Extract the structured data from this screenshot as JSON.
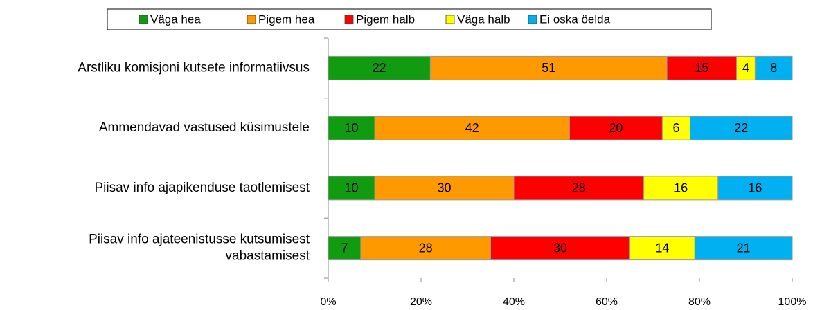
{
  "chart_data": {
    "type": "stacked_barh",
    "categories": [
      "Arstliku komisjoni kutsete informatiivsus",
      "Ammendavad vastused küsimustele",
      "Piisav info ajapikenduse taotlemisest",
      "Piisav info ajateenistusse kutsumisest\nvabastamisest"
    ],
    "series": [
      {
        "name": "Väga hea",
        "color": "#119b11",
        "values": [
          22,
          10,
          10,
          7
        ]
      },
      {
        "name": "Pigem hea",
        "color": "#ff9900",
        "values": [
          51,
          42,
          30,
          28
        ]
      },
      {
        "name": "Pigem halb",
        "color": "#ff0000",
        "values": [
          15,
          20,
          28,
          30
        ]
      },
      {
        "name": "Väga halb",
        "color": "#ffff00",
        "values": [
          4,
          6,
          16,
          14
        ]
      },
      {
        "name": "Ei oska öelda",
        "color": "#00b0f0",
        "values": [
          8,
          22,
          16,
          21
        ]
      }
    ],
    "xlim": [
      0,
      100
    ],
    "xticks": [
      {
        "value": 0,
        "label": "0%"
      },
      {
        "value": 20,
        "label": "20%"
      },
      {
        "value": 40,
        "label": "40%"
      },
      {
        "value": 60,
        "label": "60%"
      },
      {
        "value": 80,
        "label": "80%"
      },
      {
        "value": 100,
        "label": "100%"
      }
    ],
    "legend": "top"
  }
}
